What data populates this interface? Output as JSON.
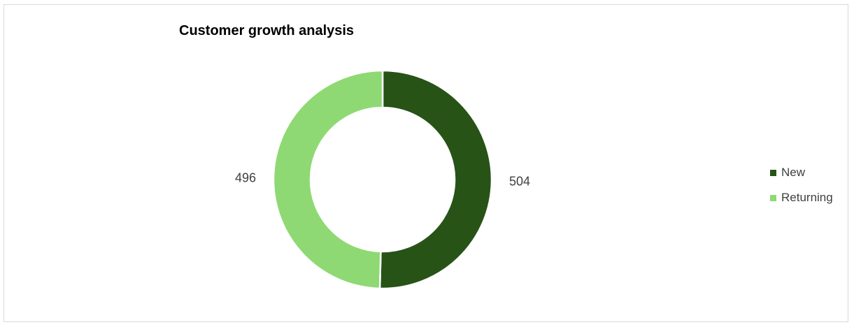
{
  "chart_data": {
    "type": "pie",
    "title": "Customer growth analysis",
    "donut": true,
    "categories": [
      "New",
      "Returning"
    ],
    "values": [
      504,
      496
    ],
    "colors": [
      "#275317",
      "#8ed973"
    ],
    "legend_position": "right"
  }
}
